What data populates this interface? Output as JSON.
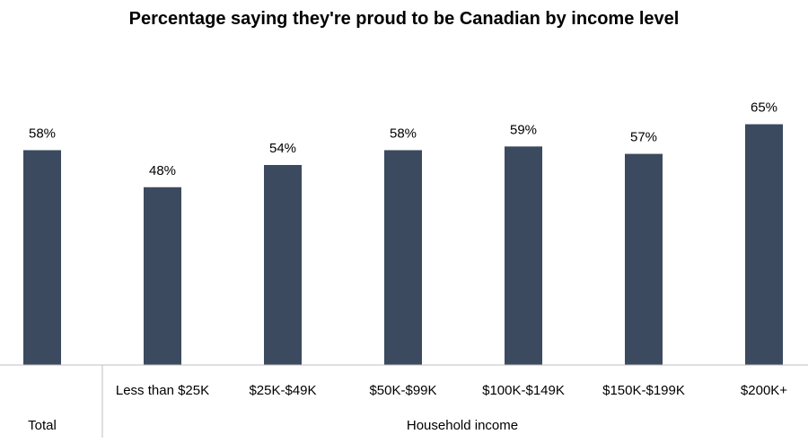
{
  "chart_data": {
    "type": "bar",
    "title": "Percentage saying they're proud to be Canadian by income level",
    "categories": [
      "Total",
      "Less than $25K",
      "$25K-$49K",
      "$50K-$99K",
      "$100K-$149K",
      "$150K-$199K",
      "$200K+"
    ],
    "values": [
      58,
      48,
      54,
      58,
      59,
      57,
      65
    ],
    "value_labels": [
      "58%",
      "48%",
      "54%",
      "58%",
      "59%",
      "57%",
      "65%"
    ],
    "groups": [
      {
        "label": "Total",
        "categories": [
          "Total"
        ]
      },
      {
        "label": "Household income",
        "categories": [
          "Less than $25K",
          "$25K-$49K",
          "$50K-$99K",
          "$100K-$149K",
          "$150K-$199K",
          "$200K+"
        ]
      }
    ],
    "xlabel": "",
    "ylabel": "",
    "ylim": [
      0,
      70
    ],
    "grid": false,
    "legend": "none",
    "colors": {
      "bar": "#3b4a5e",
      "axis": "#bfbfbf"
    }
  }
}
